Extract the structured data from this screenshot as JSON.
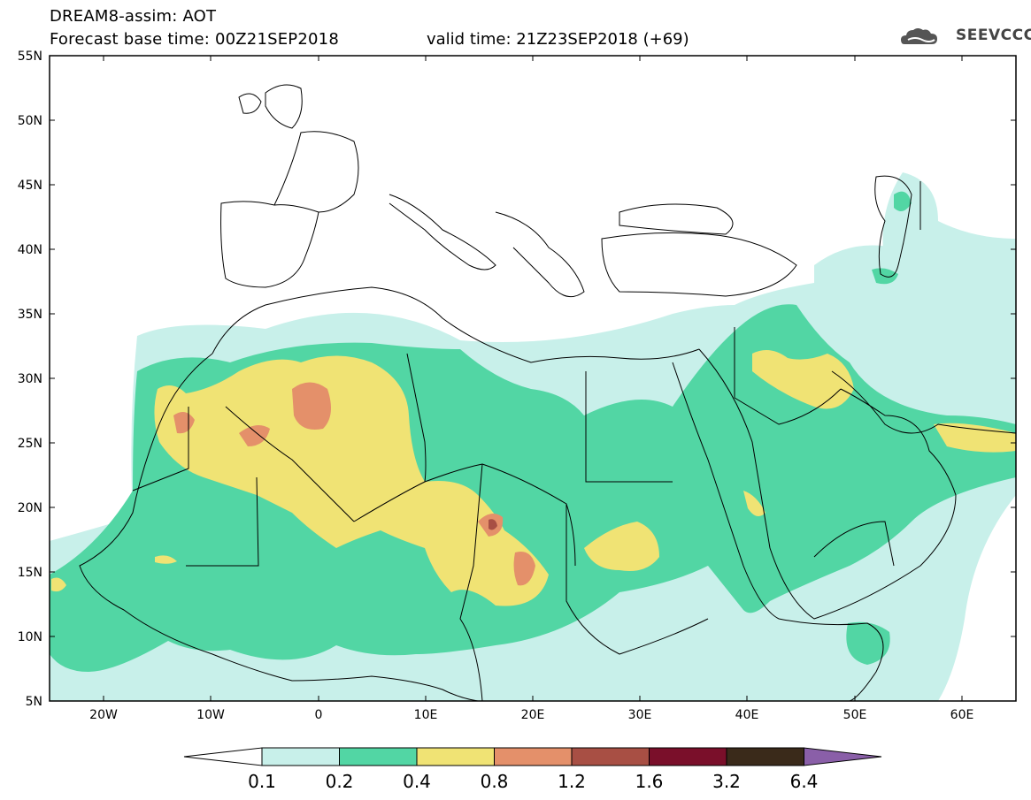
{
  "header": {
    "title_line1": "DREAM8-assim: AOT",
    "title_line2": "Forecast base time: 00Z21SEP2018",
    "valid_time": "valid time: 21Z23SEP2018 (+69)",
    "logo_text": "SEEVCCC"
  },
  "map": {
    "lat_labels": [
      "55N",
      "50N",
      "45N",
      "40N",
      "35N",
      "30N",
      "25N",
      "20N",
      "15N",
      "10N",
      "5N"
    ],
    "lon_labels": [
      "20W",
      "10W",
      "0",
      "10E",
      "20E",
      "30E",
      "40E",
      "50E",
      "60E"
    ]
  },
  "colorbar": {
    "labels": [
      "0.1",
      "0.2",
      "0.4",
      "0.8",
      "1.2",
      "1.6",
      "3.2",
      "6.4"
    ],
    "colors": [
      "#c8f0ea",
      "#52d6a4",
      "#f0e374",
      "#e4906a",
      "#a84f44",
      "#7a0f2a",
      "#3a2a1a",
      "#8a5fa8"
    ]
  },
  "colors": {
    "level1": "#c8f0ea",
    "level2": "#52d6a4",
    "level3": "#f0e374",
    "level4": "#e4906a",
    "level5": "#a84f44"
  }
}
